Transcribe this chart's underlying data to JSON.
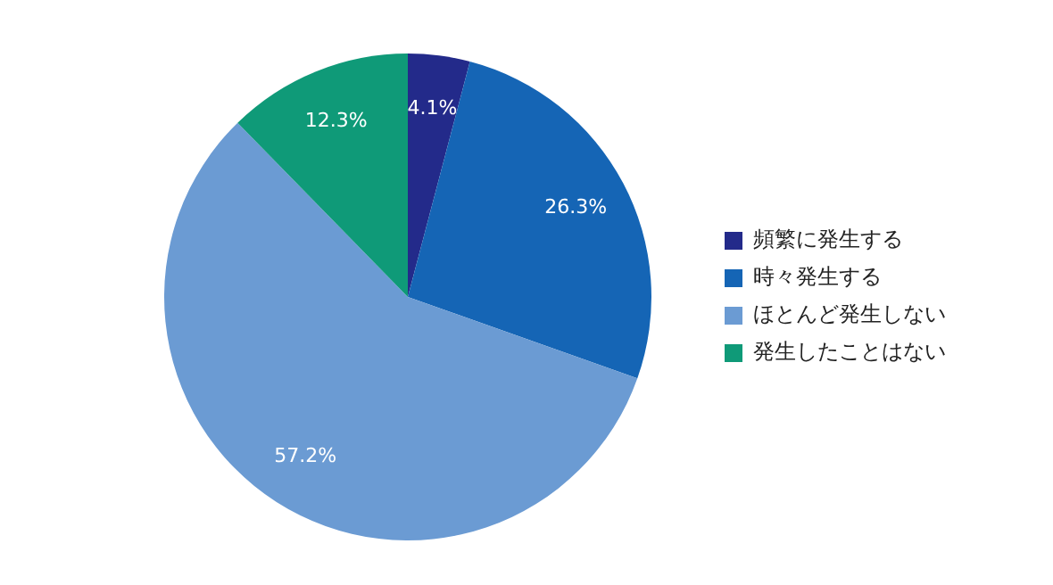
{
  "chart_data": {
    "type": "pie",
    "categories": [
      "頻繁に発生する",
      "時々発生する",
      "ほとんど発生しない",
      "発生したことはない"
    ],
    "values": [
      4.1,
      26.3,
      57.2,
      12.3
    ],
    "value_labels": [
      "4.1%",
      "26.3%",
      "57.2%",
      "12.3%"
    ],
    "colors": [
      "#232a8a",
      "#1565b5",
      "#6b9bd3",
      "#0f9a78"
    ],
    "legend": "right"
  }
}
